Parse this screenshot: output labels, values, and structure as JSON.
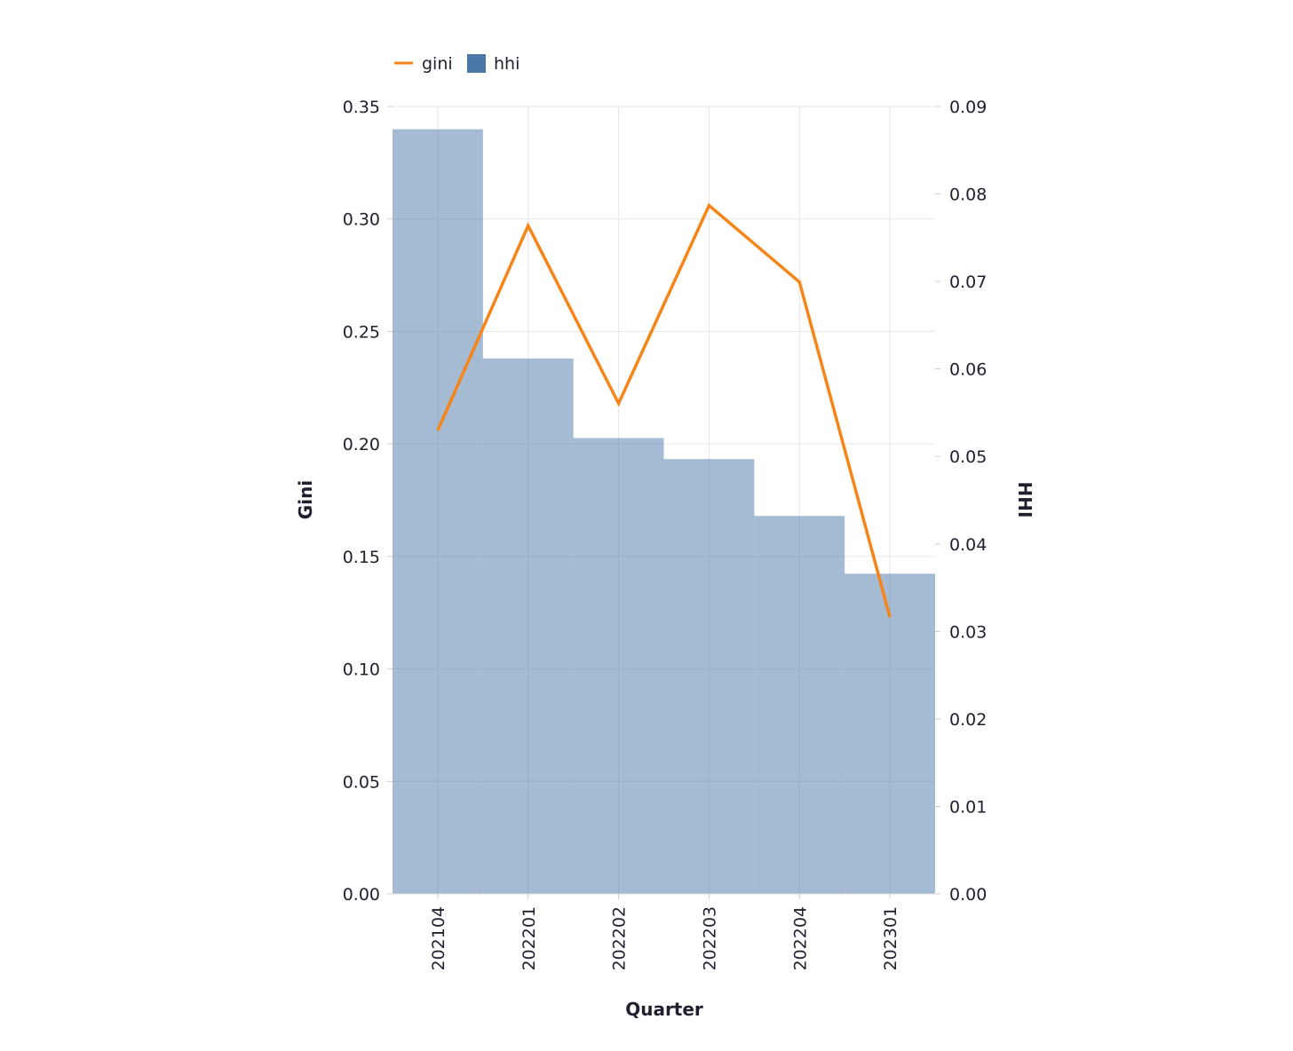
{
  "chart_data": {
    "type": "bar",
    "title": "",
    "xlabel": "Quarter",
    "ylabel_left": "Gini",
    "ylabel_right": "HHI",
    "categories": [
      "202104",
      "202201",
      "202202",
      "202203",
      "202204",
      "202301"
    ],
    "series": [
      {
        "name": "hhi",
        "type": "bar",
        "axis": "right",
        "values": [
          0.0874,
          0.0612,
          0.0521,
          0.0497,
          0.0432,
          0.0366
        ]
      },
      {
        "name": "gini",
        "type": "line",
        "axis": "left",
        "values": [
          0.206,
          0.297,
          0.218,
          0.306,
          0.272,
          0.123
        ]
      }
    ],
    "ylim_left": [
      0,
      0.35
    ],
    "ylim_right": [
      0,
      0.09
    ],
    "left_ticks": [
      "0.00",
      "0.05",
      "0.10",
      "0.15",
      "0.20",
      "0.25",
      "0.30",
      "0.35"
    ],
    "right_ticks": [
      "0.00",
      "0.01",
      "0.02",
      "0.03",
      "0.04",
      "0.05",
      "0.06",
      "0.07",
      "0.08",
      "0.09"
    ],
    "grid": true,
    "legend_position": "top-left",
    "colors": {
      "gini": "#f58518",
      "hhi": "#4c78a8",
      "hhi_bar_fill": "#4c78a8",
      "grid": "#e6e6e6",
      "axis": "#dddddd"
    }
  }
}
